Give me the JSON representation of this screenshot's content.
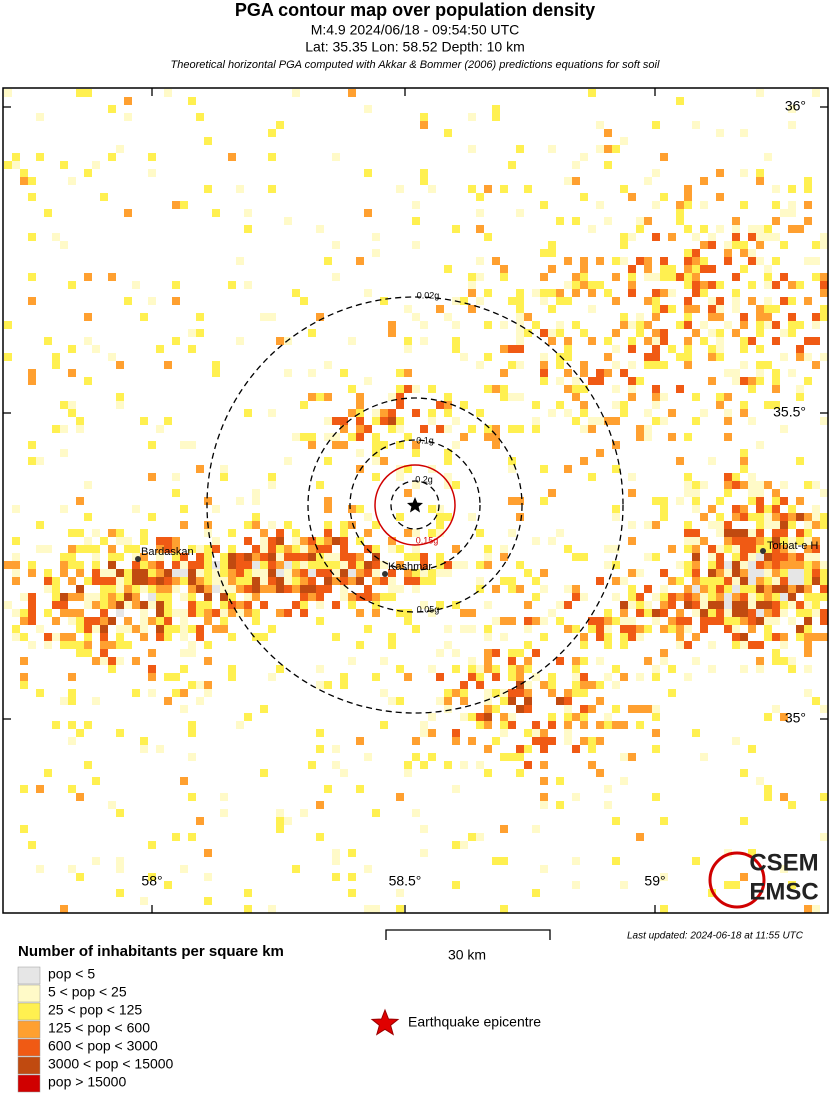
{
  "header": {
    "title": "PGA contour map over population density",
    "line1": "M:4.9 2024/06/18 - 09:54:50 UTC",
    "line2": "Lat: 35.35 Lon: 58.52 Depth: 10 km",
    "note": "Theoretical horizontal PGA computed with Akkar & Bommer (2006) predictions equations for soft soil"
  },
  "map": {
    "lat_labels": [
      "36°",
      "35.5°",
      "35°"
    ],
    "lon_labels": [
      "58°",
      "58.5°",
      "59°"
    ],
    "contours": [
      "0.02g",
      "0.05g",
      "0.1g",
      "0.15g",
      "0.2g"
    ],
    "cities": [
      "Bardaskan",
      "Kashmar",
      "Torbat-e H"
    ],
    "logo": [
      "CSEM",
      "EMSC"
    ]
  },
  "scale": "30 km",
  "updated": "Last updated: 2024-06-18 at 11:55 UTC",
  "legend": {
    "title": "Number of inhabitants per square km",
    "items": [
      {
        "label": "pop < 5",
        "color": "#e6e6e6"
      },
      {
        "label": "5 < pop < 25",
        "color": "#fffac8"
      },
      {
        "label": "25 < pop < 125",
        "color": "#fff050"
      },
      {
        "label": "125 < pop < 600",
        "color": "#ffa030"
      },
      {
        "label": "600 < pop < 3000",
        "color": "#f05a14"
      },
      {
        "label": "3000 < pop < 15000",
        "color": "#c04a10"
      },
      {
        "label": "pop > 15000",
        "color": "#d00000"
      }
    ],
    "epicentre": "Earthquake epicentre"
  }
}
